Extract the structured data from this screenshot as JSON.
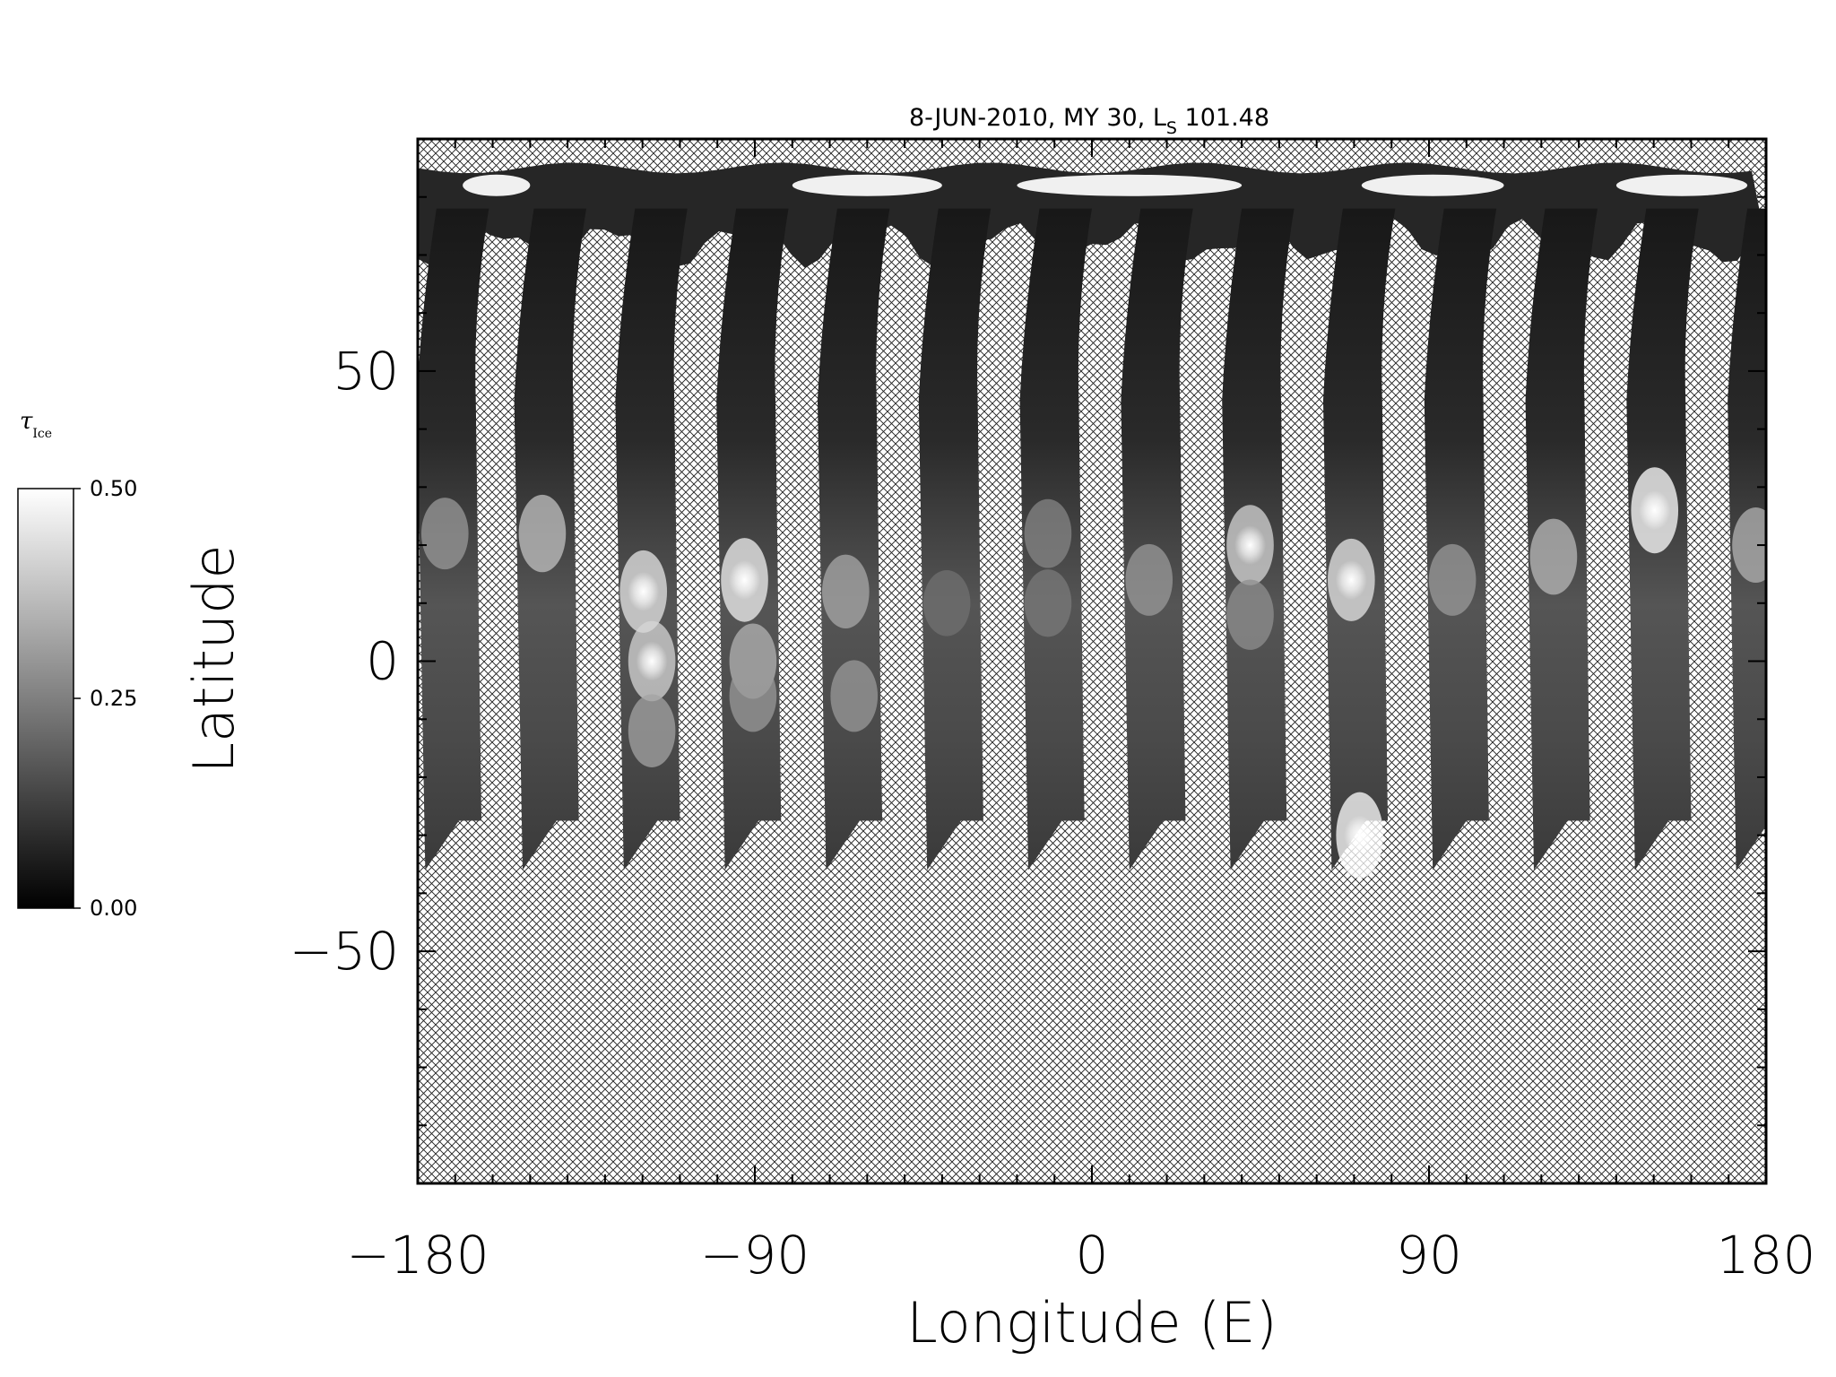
{
  "chart_data": {
    "type": "heatmap",
    "title_prefix": "8-JUN-2010, MY 30,  L",
    "title_sub": "S",
    "title_suffix": " 101.48",
    "xlabel": "Longitude (E)",
    "ylabel": "Latitude",
    "xlim": [
      -180,
      180
    ],
    "ylim": [
      -90,
      90
    ],
    "xticks": [
      -180,
      -90,
      0,
      90,
      180
    ],
    "xtick_labels": [
      "−180",
      "−90",
      "0",
      "90",
      "180"
    ],
    "yticks": [
      -50,
      0,
      50
    ],
    "ytick_labels": [
      "−50",
      "0",
      "50"
    ],
    "colormap": "grayscale",
    "no_data_pattern": "crosshatch",
    "colorbar": {
      "label_symbol": "τ",
      "label_sub": "Ice",
      "min": 0.0,
      "max": 0.5,
      "tick_values": [
        0.0,
        0.25,
        0.5
      ],
      "tick_labels": [
        "0.00",
        "0.25",
        "0.50"
      ],
      "position": "left"
    },
    "swaths": [
      {
        "lon_south": -178,
        "bright": [
          {
            "lat": 22,
            "tau": 0.3
          }
        ]
      },
      {
        "lon_south": -152,
        "bright": [
          {
            "lat": 22,
            "tau": 0.38
          }
        ]
      },
      {
        "lon_south": -125,
        "bright": [
          {
            "lat": 12,
            "tau": 0.45
          },
          {
            "lat": 0,
            "tau": 0.42
          },
          {
            "lat": -12,
            "tau": 0.32
          }
        ]
      },
      {
        "lon_south": -98,
        "bright": [
          {
            "lat": 14,
            "tau": 0.47
          },
          {
            "lat": 0,
            "tau": 0.35
          },
          {
            "lat": -6,
            "tau": 0.3
          }
        ]
      },
      {
        "lon_south": -71,
        "bright": [
          {
            "lat": 12,
            "tau": 0.33
          },
          {
            "lat": -6,
            "tau": 0.3
          }
        ]
      },
      {
        "lon_south": -44,
        "bright": [
          {
            "lat": 10,
            "tau": 0.22
          }
        ]
      },
      {
        "lon_south": -17,
        "bright": [
          {
            "lat": 22,
            "tau": 0.26
          },
          {
            "lat": 10,
            "tau": 0.24
          }
        ]
      },
      {
        "lon_south": 10,
        "bright": [
          {
            "lat": 14,
            "tau": 0.3
          }
        ]
      },
      {
        "lon_south": 37,
        "bright": [
          {
            "lat": 20,
            "tau": 0.42
          },
          {
            "lat": 8,
            "tau": 0.28
          }
        ]
      },
      {
        "lon_south": 64,
        "bright": [
          {
            "lat": 14,
            "tau": 0.45
          },
          {
            "lat": -30,
            "tau": 0.5
          }
        ]
      },
      {
        "lon_south": 91,
        "bright": [
          {
            "lat": 14,
            "tau": 0.3
          }
        ]
      },
      {
        "lon_south": 118,
        "bright": [
          {
            "lat": 18,
            "tau": 0.36
          }
        ]
      },
      {
        "lon_south": 145,
        "bright": [
          {
            "lat": 26,
            "tau": 0.5
          }
        ]
      },
      {
        "lon_south": 172,
        "bright": [
          {
            "lat": 20,
            "tau": 0.35
          }
        ]
      }
    ],
    "swath_lat_range": [
      -36,
      78
    ],
    "north_cap_lat": [
      72,
      85
    ]
  }
}
